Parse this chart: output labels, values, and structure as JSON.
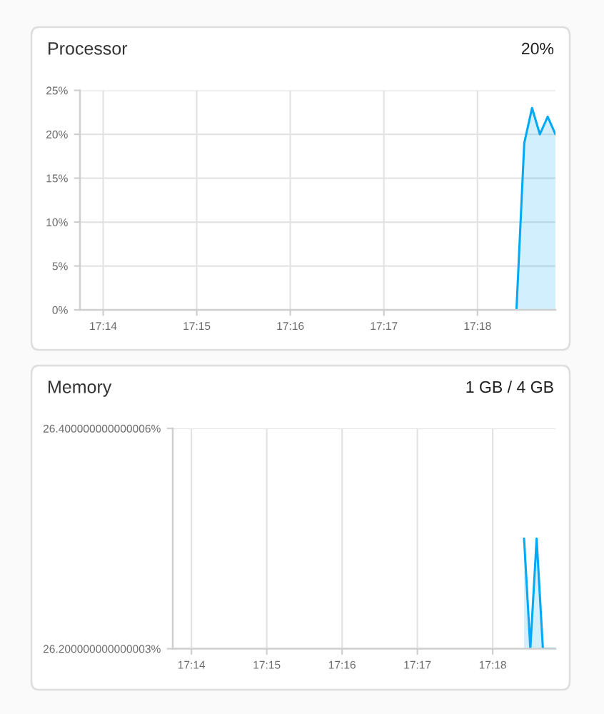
{
  "chart_data": [
    {
      "type": "area",
      "title": "Processor",
      "annotations": [
        "20%"
      ],
      "x": [
        17.306944,
        17.308333,
        17.309722,
        17.311111,
        17.3125,
        17.313889
      ],
      "series": [
        {
          "color": "#03a9f4",
          "values": [
            0,
            19,
            23,
            20,
            22,
            20
          ]
        }
      ],
      "xlim": [
        17.2292,
        17.313889
      ],
      "xticks": [
        {
          "value": 17.233333,
          "label": "17:14"
        },
        {
          "value": 17.25,
          "label": "17:15"
        },
        {
          "value": 17.266667,
          "label": "17:16"
        },
        {
          "value": 17.283333,
          "label": "17:17"
        },
        {
          "value": 17.3,
          "label": "17:18"
        }
      ],
      "ylim": [
        0,
        25
      ],
      "yticks": [
        {
          "value": 0,
          "label": "0%"
        },
        {
          "value": 5,
          "label": "5%"
        },
        {
          "value": 10,
          "label": "10%"
        },
        {
          "value": 15,
          "label": "15%"
        },
        {
          "value": 20,
          "label": "20%"
        },
        {
          "value": 25,
          "label": "25%"
        }
      ],
      "grid": true
    },
    {
      "type": "area",
      "title": "Memory",
      "annotations": [
        "1 GB / 4 GB"
      ],
      "x": [
        17.306944,
        17.308333,
        17.309722,
        17.311111,
        17.3125,
        17.313889
      ],
      "series": [
        {
          "color": "#03a9f4",
          "values": [
            26.3,
            26.2,
            26.3,
            26.2,
            26.2,
            26.2
          ]
        }
      ],
      "xlim": [
        17.2292,
        17.313889
      ],
      "xticks": [
        {
          "value": 17.233333,
          "label": "17:14"
        },
        {
          "value": 17.25,
          "label": "17:15"
        },
        {
          "value": 17.266667,
          "label": "17:16"
        },
        {
          "value": 17.283333,
          "label": "17:17"
        },
        {
          "value": 17.3,
          "label": "17:18"
        }
      ],
      "ylim": [
        26.2,
        26.4
      ],
      "yticks": [
        {
          "value": 26.2,
          "label": "26.200000000000003%"
        },
        {
          "value": 26.4,
          "label": "26.400000000000006%"
        }
      ],
      "grid": true
    }
  ]
}
